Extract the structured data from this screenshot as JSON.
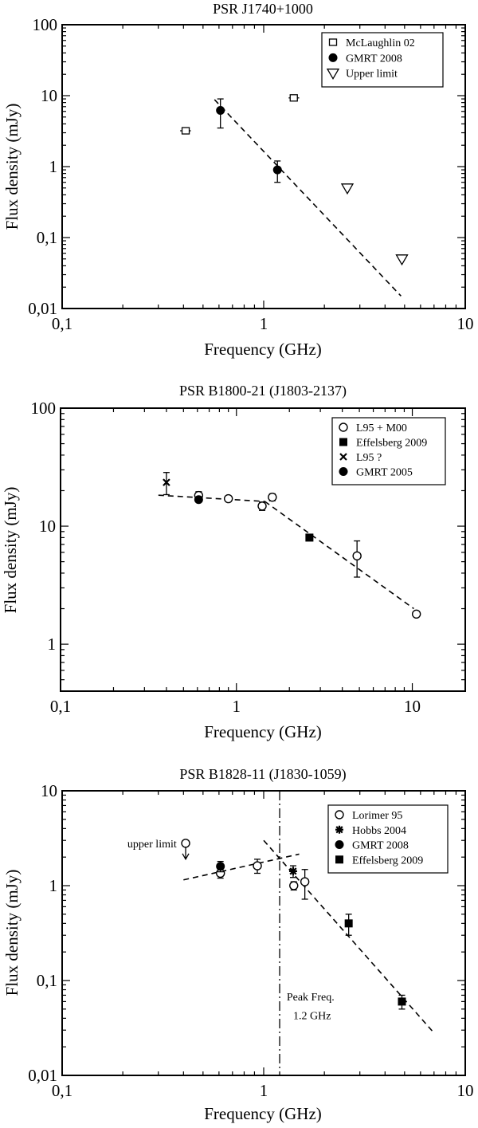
{
  "chart_data": [
    {
      "type": "scatter",
      "title": "PSR J1740+1000",
      "xlabel": "Frequency (GHz)",
      "ylabel": "Flux density (mJy)",
      "xlim": [
        0.1,
        10
      ],
      "ylim": [
        0.01,
        100
      ],
      "xscale": "log",
      "yscale": "log",
      "xticks": [
        {
          "v": 0.1,
          "label": "0,1"
        },
        {
          "v": 1,
          "label": "1"
        },
        {
          "v": 10,
          "label": "10"
        }
      ],
      "yticks": [
        {
          "v": 0.01,
          "label": "0,01"
        },
        {
          "v": 0.1,
          "label": "0,1"
        },
        {
          "v": 1,
          "label": "1"
        },
        {
          "v": 10,
          "label": "10"
        },
        {
          "v": 100,
          "label": "100"
        }
      ],
      "legend_position": "top-right",
      "series": [
        {
          "name": "McLaughlin 02",
          "marker": "open-square",
          "points": [
            {
              "x": 0.41,
              "y": 3.2,
              "ylo": 2.9,
              "yhi": 3.5,
              "xlo": 0.385,
              "xhi": 0.435
            },
            {
              "x": 1.41,
              "y": 9.3,
              "ylo": 8.5,
              "yhi": 10.1,
              "xlo": 1.33,
              "xhi": 1.5
            }
          ]
        },
        {
          "name": "GMRT 2008",
          "marker": "filled-circle",
          "points": [
            {
              "x": 0.61,
              "y": 6.2,
              "ylo": 3.5,
              "yhi": 9.0
            },
            {
              "x": 1.17,
              "y": 0.9,
              "ylo": 0.6,
              "yhi": 1.2
            }
          ]
        },
        {
          "name": "Upper limit",
          "marker": "open-triangle-down",
          "points": [
            {
              "x": 2.6,
              "y": 0.5
            },
            {
              "x": 4.85,
              "y": 0.05
            }
          ]
        }
      ],
      "fits": [
        {
          "x1": 0.57,
          "y1": 8.8,
          "x2": 4.8,
          "y2": 0.015
        }
      ],
      "vlines": [],
      "annotations": []
    },
    {
      "type": "scatter",
      "title": "PSR B1800-21 (J1803-2137)",
      "xlabel": "Frequency (GHz)",
      "ylabel": "Flux density (mJy)",
      "xlim": [
        0.1,
        20
      ],
      "ylim": [
        0.4,
        100
      ],
      "xscale": "log",
      "yscale": "log",
      "xticks": [
        {
          "v": 0.1,
          "label": "0,1"
        },
        {
          "v": 1,
          "label": "1"
        },
        {
          "v": 10,
          "label": "10"
        }
      ],
      "yticks": [
        {
          "v": 1,
          "label": "1"
        },
        {
          "v": 10,
          "label": "10"
        },
        {
          "v": 100,
          "label": "100"
        }
      ],
      "legend_position": "top-right",
      "series": [
        {
          "name": "L95 + M00",
          "marker": "open-circle",
          "points": [
            {
              "x": 0.61,
              "y": 18.2,
              "ylo": 16.8,
              "yhi": 19.6
            },
            {
              "x": 0.9,
              "y": 17.1,
              "ylo": 16.3,
              "yhi": 17.9
            },
            {
              "x": 1.4,
              "y": 14.8,
              "ylo": 13.6,
              "yhi": 16.0
            },
            {
              "x": 1.6,
              "y": 17.6,
              "ylo": 16.4,
              "yhi": 18.8
            },
            {
              "x": 4.85,
              "y": 5.6,
              "ylo": 3.7,
              "yhi": 7.5
            },
            {
              "x": 10.55,
              "y": 1.8
            }
          ]
        },
        {
          "name": "Effelsberg 2009",
          "marker": "filled-square",
          "points": [
            {
              "x": 2.6,
              "y": 8.0,
              "ylo": 7.6,
              "yhi": 8.4
            }
          ]
        },
        {
          "name": "L95 ?",
          "marker": "cross",
          "points": [
            {
              "x": 0.4,
              "y": 23.5,
              "ylo": 18.5,
              "yhi": 28.5
            }
          ]
        },
        {
          "name": "GMRT 2005",
          "marker": "filled-circle",
          "points": [
            {
              "x": 0.61,
              "y": 16.8
            }
          ]
        }
      ],
      "fits": [
        {
          "x1": 0.36,
          "y1": 18.3,
          "x2": 1.45,
          "y2": 16.2
        },
        {
          "x1": 1.45,
          "y1": 16.2,
          "x2": 10.2,
          "y2": 2.0
        }
      ],
      "vlines": [],
      "annotations": []
    },
    {
      "type": "scatter",
      "title": "PSR B1828-11  (J1830-1059)",
      "xlabel": "Frequency (GHz)",
      "ylabel": "Flux  density (mJy)",
      "xlim": [
        0.1,
        10
      ],
      "ylim": [
        0.01,
        10
      ],
      "xscale": "log",
      "yscale": "log",
      "xticks": [
        {
          "v": 0.1,
          "label": "0,1"
        },
        {
          "v": 1,
          "label": "1"
        },
        {
          "v": 10,
          "label": "10"
        }
      ],
      "yticks": [
        {
          "v": 0.01,
          "label": "0,01"
        },
        {
          "v": 0.1,
          "label": "0,1"
        },
        {
          "v": 1,
          "label": "1"
        },
        {
          "v": 10,
          "label": "10"
        }
      ],
      "legend_position": "top-right",
      "series": [
        {
          "name": "Lorimer 95",
          "marker": "open-circle",
          "points": [
            {
              "x": 0.41,
              "y": 2.8
            },
            {
              "x": 0.61,
              "y": 1.35,
              "ylo": 1.2,
              "yhi": 1.5
            },
            {
              "x": 0.93,
              "y": 1.62,
              "ylo": 1.35,
              "yhi": 1.9
            },
            {
              "x": 1.41,
              "y": 1.0,
              "ylo": 0.9,
              "yhi": 1.1
            },
            {
              "x": 1.6,
              "y": 1.1,
              "ylo": 0.72,
              "yhi": 1.48
            }
          ]
        },
        {
          "name": "Hobbs 2004",
          "marker": "asterisk",
          "points": [
            {
              "x": 1.4,
              "y": 1.42,
              "ylo": 1.22,
              "yhi": 1.62
            }
          ]
        },
        {
          "name": "GMRT 2008",
          "marker": "filled-circle",
          "points": [
            {
              "x": 0.61,
              "y": 1.6,
              "ylo": 1.4,
              "yhi": 1.8
            }
          ]
        },
        {
          "name": "Effelsberg 2009",
          "marker": "filled-square",
          "points": [
            {
              "x": 2.64,
              "y": 0.4,
              "ylo": 0.3,
              "yhi": 0.5
            },
            {
              "x": 4.85,
              "y": 0.06,
              "ylo": 0.05,
              "yhi": 0.07
            }
          ]
        }
      ],
      "fits": [
        {
          "x1": 0.4,
          "y1": 1.15,
          "x2": 1.5,
          "y2": 2.15
        },
        {
          "x1": 1.0,
          "y1": 3.0,
          "x2": 7.0,
          "y2": 0.028
        }
      ],
      "vlines": [
        {
          "x": 1.2,
          "style": "dash-dot"
        }
      ],
      "annotations": [
        {
          "text": "upper limit",
          "x": 0.37,
          "y": 2.8,
          "anchor": "end"
        },
        {
          "text": "Peak Freq.",
          "x": 1.3,
          "y": 0.068,
          "anchor": "start"
        },
        {
          "text": "1.2 GHz",
          "x": 1.4,
          "y": 0.043,
          "anchor": "start"
        }
      ],
      "upper_limit_arrows": [
        {
          "x": 0.41,
          "y": 2.8
        }
      ]
    }
  ]
}
